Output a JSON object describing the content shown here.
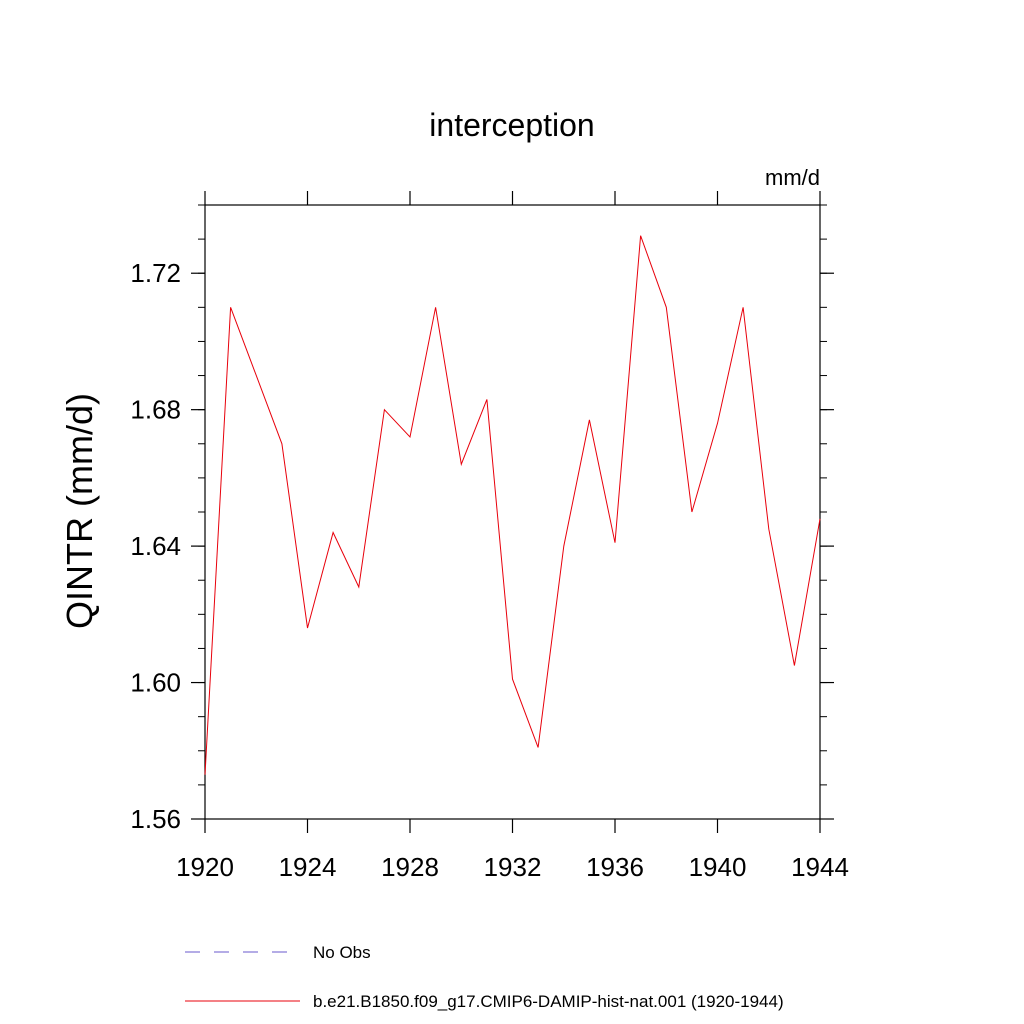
{
  "chart_data": {
    "type": "line",
    "title": "interception",
    "units_label": "mm/d",
    "xlabel": "",
    "ylabel": "QINTR  (mm/d)",
    "xlim": [
      1920,
      1944
    ],
    "ylim": [
      1.56,
      1.74
    ],
    "x_ticks": [
      1920,
      1924,
      1928,
      1932,
      1936,
      1940,
      1944
    ],
    "x_tick_labels": [
      "1920",
      "1924",
      "1928",
      "1932",
      "1936",
      "1940",
      "1944"
    ],
    "y_ticks": [
      1.56,
      1.6,
      1.64,
      1.68,
      1.72
    ],
    "y_tick_labels": [
      "1.56",
      "1.60",
      "1.64",
      "1.68",
      "1.72"
    ],
    "grid": false,
    "legend_position": "bottom",
    "series": [
      {
        "name": "b.e21.B1850.f09_g17.CMIP6-DAMIP-hist-nat.001 (1920-1944)",
        "color": "#e8000b",
        "dash": "solid",
        "x": [
          1920,
          1921,
          1922,
          1923,
          1924,
          1925,
          1926,
          1927,
          1928,
          1929,
          1930,
          1931,
          1932,
          1933,
          1934,
          1935,
          1936,
          1937,
          1938,
          1939,
          1940,
          1941,
          1942,
          1943,
          1944
        ],
        "values": [
          1.573,
          1.71,
          1.69,
          1.67,
          1.616,
          1.644,
          1.628,
          1.68,
          1.672,
          1.71,
          1.664,
          1.683,
          1.601,
          1.581,
          1.64,
          1.677,
          1.641,
          1.731,
          1.71,
          1.65,
          1.676,
          1.71,
          1.645,
          1.605,
          1.648
        ]
      }
    ],
    "legend": [
      {
        "label": "No Obs",
        "color": "#6a5acd",
        "dash": "dashed"
      },
      {
        "label": "b.e21.B1850.f09_g17.CMIP6-DAMIP-hist-nat.001 (1920-1944)",
        "color": "#e8000b",
        "dash": "solid"
      }
    ]
  }
}
